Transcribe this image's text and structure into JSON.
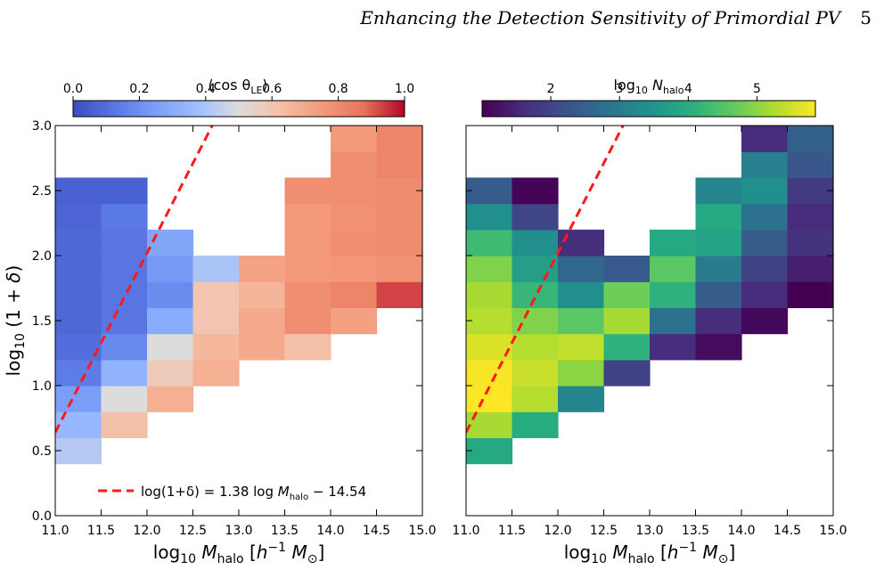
{
  "header": {
    "running_title": "Enhancing the Detection Sensitivity of Primordial PV",
    "page_number": "5"
  },
  "chart_data": [
    {
      "type": "heatmap",
      "colorbar": {
        "label": "⟨cos θ_LE⟩",
        "label_main": "⟨cos θ",
        "label_sub": "LE",
        "label_close": "⟩",
        "colormap": "coolwarm",
        "range": [
          0.0,
          1.0
        ],
        "ticks": [
          "0.0",
          "0.2",
          "0.4",
          "0.6",
          "0.8",
          "1.0"
        ]
      },
      "xlabel": "log10 M_halo [h^-1 M_sun]",
      "ylabel": "log10 (1+δ)",
      "xlim": [
        11.0,
        15.0
      ],
      "ylim": [
        0.0,
        3.0
      ],
      "xticks": [
        "11.0",
        "11.5",
        "12.0",
        "12.5",
        "13.0",
        "13.5",
        "14.0",
        "14.5",
        "15.0"
      ],
      "yticks": [
        "0.0",
        "0.5",
        "1.0",
        "1.5",
        "2.0",
        "2.5",
        "3.0"
      ],
      "bins": {
        "x_step": 0.5,
        "y_step": 0.2
      },
      "cells": [
        [
          11.0,
          0.4,
          0.42
        ],
        [
          11.0,
          0.6,
          0.35
        ],
        [
          11.0,
          0.8,
          0.25
        ],
        [
          11.0,
          1.0,
          0.14
        ],
        [
          11.0,
          1.2,
          0.1
        ],
        [
          11.0,
          1.4,
          0.08
        ],
        [
          11.0,
          1.6,
          0.08
        ],
        [
          11.0,
          1.8,
          0.08
        ],
        [
          11.0,
          2.0,
          0.08
        ],
        [
          11.0,
          2.2,
          0.07
        ],
        [
          11.0,
          2.4,
          0.06
        ],
        [
          11.5,
          0.6,
          0.62
        ],
        [
          11.5,
          0.8,
          0.5
        ],
        [
          11.5,
          1.0,
          0.33
        ],
        [
          11.5,
          1.2,
          0.18
        ],
        [
          11.5,
          1.4,
          0.12
        ],
        [
          11.5,
          1.6,
          0.12
        ],
        [
          11.5,
          1.8,
          0.12
        ],
        [
          11.5,
          2.0,
          0.12
        ],
        [
          11.5,
          2.2,
          0.13
        ],
        [
          11.5,
          2.4,
          0.06
        ],
        [
          12.0,
          0.8,
          0.68
        ],
        [
          12.0,
          1.0,
          0.58
        ],
        [
          12.0,
          1.2,
          0.5
        ],
        [
          12.0,
          1.4,
          0.3
        ],
        [
          12.0,
          1.6,
          0.19
        ],
        [
          12.0,
          1.8,
          0.23
        ],
        [
          12.0,
          2.0,
          0.28
        ],
        [
          12.5,
          1.0,
          0.68
        ],
        [
          12.5,
          1.2,
          0.65
        ],
        [
          12.5,
          1.4,
          0.6
        ],
        [
          12.5,
          1.6,
          0.6
        ],
        [
          12.5,
          1.8,
          0.4
        ],
        [
          13.0,
          1.2,
          0.7
        ],
        [
          13.0,
          1.4,
          0.7
        ],
        [
          13.0,
          1.6,
          0.66
        ],
        [
          13.0,
          1.8,
          0.72
        ],
        [
          13.5,
          1.2,
          0.62
        ],
        [
          13.5,
          1.4,
          0.79
        ],
        [
          13.5,
          1.6,
          0.79
        ],
        [
          13.5,
          1.8,
          0.75
        ],
        [
          13.5,
          2.0,
          0.75
        ],
        [
          13.5,
          2.2,
          0.75
        ],
        [
          13.5,
          2.4,
          0.79
        ],
        [
          14.0,
          1.4,
          0.73
        ],
        [
          14.0,
          1.6,
          0.82
        ],
        [
          14.0,
          1.8,
          0.76
        ],
        [
          14.0,
          2.0,
          0.79
        ],
        [
          14.0,
          2.2,
          0.78
        ],
        [
          14.0,
          2.4,
          0.79
        ],
        [
          14.0,
          2.6,
          0.79
        ],
        [
          14.0,
          2.8,
          0.75
        ],
        [
          14.5,
          1.6,
          0.93
        ],
        [
          14.5,
          1.8,
          0.78
        ],
        [
          14.5,
          2.0,
          0.8
        ],
        [
          14.5,
          2.2,
          0.8
        ],
        [
          14.5,
          2.4,
          0.8
        ],
        [
          14.5,
          2.6,
          0.82
        ],
        [
          14.5,
          2.8,
          0.82
        ]
      ],
      "fit_line": {
        "label": "log(1+δ) = 1.38 log M_halo − 14.54",
        "label_a": "log(1+δ) = 1.38 log ",
        "label_m": "M",
        "label_sub": "halo",
        "label_b": " − 14.54",
        "slope": 1.38,
        "intercept": -14.54,
        "color": "#ff1a1a",
        "style": "dashed"
      },
      "legend_position": "lower-right"
    },
    {
      "type": "heatmap",
      "colorbar": {
        "label": "log10 N_halo",
        "label_main": "log",
        "label_sub10": "10",
        "label_n": " N",
        "label_sub": "halo",
        "colormap": "viridis",
        "range": [
          1.0,
          5.85
        ],
        "ticks": [
          "2",
          "3",
          "4",
          "5"
        ]
      },
      "xlabel": "log10 M_halo [h^-1 M_sun]",
      "xlim": [
        11.0,
        15.0
      ],
      "ylim": [
        0.0,
        3.0
      ],
      "xticks": [
        "11.0",
        "11.5",
        "12.0",
        "12.5",
        "13.0",
        "13.5",
        "14.0",
        "14.5",
        "15.0"
      ],
      "bins": {
        "x_step": 0.5,
        "y_step": 0.2
      },
      "cells": [
        [
          11.0,
          0.4,
          3.9
        ],
        [
          11.0,
          0.6,
          5.2
        ],
        [
          11.0,
          0.8,
          5.85
        ],
        [
          11.0,
          1.0,
          5.8
        ],
        [
          11.0,
          1.2,
          5.6
        ],
        [
          11.0,
          1.4,
          5.3
        ],
        [
          11.0,
          1.6,
          5.2
        ],
        [
          11.0,
          1.8,
          4.9
        ],
        [
          11.0,
          2.0,
          4.3
        ],
        [
          11.0,
          2.2,
          3.4
        ],
        [
          11.0,
          2.4,
          2.4
        ],
        [
          11.5,
          0.6,
          4.0
        ],
        [
          11.5,
          0.8,
          5.3
        ],
        [
          11.5,
          1.0,
          5.45
        ],
        [
          11.5,
          1.2,
          5.3
        ],
        [
          11.5,
          1.4,
          4.9
        ],
        [
          11.5,
          1.6,
          4.2
        ],
        [
          11.5,
          1.8,
          3.7
        ],
        [
          11.5,
          2.0,
          3.4
        ],
        [
          11.5,
          2.2,
          2.0
        ],
        [
          11.5,
          2.4,
          1.05
        ],
        [
          12.0,
          0.8,
          3.2
        ],
        [
          12.0,
          1.0,
          5.0
        ],
        [
          12.0,
          1.2,
          5.4
        ],
        [
          12.0,
          1.4,
          4.6
        ],
        [
          12.0,
          1.6,
          3.4
        ],
        [
          12.0,
          1.8,
          2.6
        ],
        [
          12.0,
          2.0,
          1.65
        ],
        [
          12.5,
          1.0,
          1.95
        ],
        [
          12.5,
          1.2,
          4.1
        ],
        [
          12.5,
          1.4,
          5.2
        ],
        [
          12.5,
          1.6,
          4.75
        ],
        [
          12.5,
          1.8,
          2.35
        ],
        [
          13.0,
          1.2,
          1.6
        ],
        [
          13.0,
          1.4,
          2.8
        ],
        [
          13.0,
          1.6,
          4.1
        ],
        [
          13.0,
          1.8,
          4.6
        ],
        [
          13.0,
          2.0,
          3.9
        ],
        [
          13.5,
          1.2,
          1.15
        ],
        [
          13.5,
          1.4,
          1.6
        ],
        [
          13.5,
          1.6,
          2.4
        ],
        [
          13.5,
          1.8,
          3.0
        ],
        [
          13.5,
          2.0,
          3.8
        ],
        [
          13.5,
          2.2,
          3.9
        ],
        [
          13.5,
          2.4,
          3.2
        ],
        [
          14.0,
          1.4,
          1.1
        ],
        [
          14.0,
          1.6,
          1.6
        ],
        [
          14.0,
          1.8,
          1.95
        ],
        [
          14.0,
          2.0,
          2.4
        ],
        [
          14.0,
          2.2,
          2.8
        ],
        [
          14.0,
          2.4,
          3.4
        ],
        [
          14.0,
          2.6,
          3.1
        ],
        [
          14.0,
          2.8,
          1.6
        ],
        [
          14.5,
          1.6,
          1.0
        ],
        [
          14.5,
          1.8,
          1.4
        ],
        [
          14.5,
          2.0,
          1.7
        ],
        [
          14.5,
          2.2,
          1.6
        ],
        [
          14.5,
          2.4,
          1.8
        ],
        [
          14.5,
          2.6,
          2.3
        ],
        [
          14.5,
          2.8,
          2.5
        ]
      ],
      "fit_line": {
        "slope": 1.38,
        "intercept": -14.54,
        "color": "#ff1a1a",
        "style": "dashed"
      }
    }
  ]
}
